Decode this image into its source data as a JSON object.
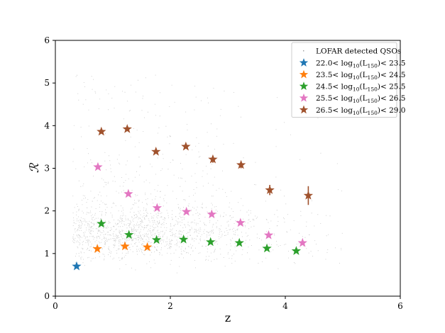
{
  "chart_data": {
    "type": "scatter",
    "xlabel": "z",
    "ylabel": "ℛ",
    "xlim": [
      0,
      6
    ],
    "ylim": [
      0,
      6
    ],
    "xticks": [
      0,
      2,
      4,
      6
    ],
    "yticks": [
      0,
      1,
      2,
      3,
      4,
      5,
      6
    ],
    "grid": false,
    "legend_position": "top-right",
    "background_points": {
      "name": "LOFAR detected QSOs",
      "color": "#999999",
      "marker": "dot"
    },
    "series": [
      {
        "name": "22.0< log10(L150)< 23.5",
        "label_prefix": "22.0< log",
        "label_sub": "10",
        "label_mid": "(L",
        "label_sub2": "150",
        "label_suffix": ")< 23.5",
        "color": "#1f77b4",
        "marker": "star",
        "x": [
          0.37
        ],
        "y": [
          0.7
        ]
      },
      {
        "name": "23.5< log10(L150)< 24.5",
        "label_prefix": "23.5< log",
        "label_sub": "10",
        "label_mid": "(L",
        "label_sub2": "150",
        "label_suffix": ")< 24.5",
        "color": "#ff7f0e",
        "marker": "star",
        "x": [
          0.73,
          1.21,
          1.6
        ],
        "y": [
          1.11,
          1.17,
          1.15
        ]
      },
      {
        "name": "24.5< log10(L150)< 25.5",
        "label_prefix": "24.5< log",
        "label_sub": "10",
        "label_mid": "(L",
        "label_sub2": "150",
        "label_suffix": ")< 25.5",
        "color": "#2ca02c",
        "marker": "star",
        "x": [
          0.8,
          1.28,
          1.76,
          2.23,
          2.7,
          3.2,
          3.68,
          4.19
        ],
        "y": [
          1.7,
          1.44,
          1.32,
          1.33,
          1.27,
          1.25,
          1.12,
          1.06
        ]
      },
      {
        "name": "25.5< log10(L150)< 26.5",
        "label_prefix": "25.5< log",
        "label_sub": "10",
        "label_mid": "(L",
        "label_sub2": "150",
        "label_suffix": ")< 26.5",
        "color": "#e377c2",
        "marker": "star",
        "x": [
          0.74,
          1.27,
          1.77,
          2.28,
          2.72,
          3.22,
          3.71,
          4.3
        ],
        "y": [
          3.03,
          2.4,
          2.07,
          1.98,
          1.92,
          1.72,
          1.43,
          1.25
        ]
      },
      {
        "name": "26.5< log10(L150)< 29.0",
        "label_prefix": "26.5< log",
        "label_sub": "10",
        "label_mid": "(L",
        "label_sub2": "150",
        "label_suffix": ")< 29.0",
        "color": "#a0522d",
        "marker": "star",
        "x": [
          0.8,
          1.25,
          1.75,
          2.27,
          2.74,
          3.23,
          3.73,
          4.4
        ],
        "y": [
          3.86,
          3.92,
          3.39,
          3.51,
          3.21,
          3.08,
          2.49,
          2.36
        ],
        "yerr": [
          0,
          0,
          0,
          0,
          0.08,
          0.08,
          0.12,
          0.22
        ]
      }
    ]
  }
}
